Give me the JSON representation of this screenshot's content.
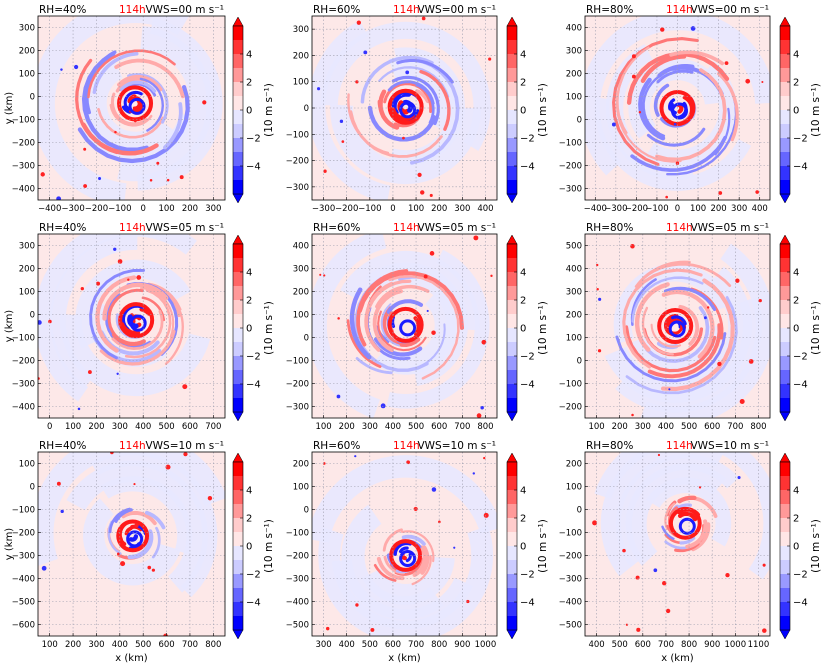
{
  "panels": [
    {
      "label": "RH=40%",
      "time": "114h",
      "shear": "VWS=00 m s⁻¹",
      "xticks": [
        "−400",
        "−300",
        "−200",
        "−100",
        "0",
        "100",
        "200",
        "300"
      ],
      "yticks": [
        "300",
        "200",
        "100",
        "0",
        "−100",
        "−200",
        "−300",
        "−400"
      ],
      "xlabel": "",
      "ylabel": "y (km)"
    },
    {
      "label": "RH=60%",
      "time": "114h",
      "shear": "VWS=00 m s⁻¹",
      "xticks": [
        "−300",
        "−200",
        "−100",
        "0",
        "100",
        "200",
        "300",
        "400"
      ],
      "yticks": [
        "300",
        "200",
        "100",
        "0",
        "−100",
        "−200",
        "−300"
      ],
      "xlabel": "",
      "ylabel": ""
    },
    {
      "label": "RH=80%",
      "time": "114h",
      "shear": "VWS=00 m s⁻¹",
      "xticks": [
        "−400",
        "−300",
        "−200",
        "−100",
        "0",
        "100",
        "200",
        "300",
        "400"
      ],
      "yticks": [
        "400",
        "300",
        "200",
        "100",
        "0",
        "−100",
        "−200",
        "−300"
      ],
      "xlabel": "",
      "ylabel": ""
    },
    {
      "label": "RH=40%",
      "time": "114h",
      "shear": "VWS=05 m s⁻¹",
      "xticks": [
        "0",
        "100",
        "200",
        "300",
        "400",
        "500",
        "600",
        "700"
      ],
      "yticks": [
        "300",
        "200",
        "100",
        "0",
        "−100",
        "−200",
        "−300",
        "−400"
      ],
      "xlabel": "",
      "ylabel": "y (km)"
    },
    {
      "label": "RH=60%",
      "time": "114h",
      "shear": "VWS=05 m s⁻¹",
      "xticks": [
        "100",
        "200",
        "300",
        "400",
        "500",
        "600",
        "700",
        "800"
      ],
      "yticks": [
        "400",
        "300",
        "200",
        "100",
        "0",
        "−100",
        "−200",
        "−300"
      ],
      "xlabel": "",
      "ylabel": ""
    },
    {
      "label": "RH=80%",
      "time": "114h",
      "shear": "VWS=05 m s⁻¹",
      "xticks": [
        "100",
        "200",
        "300",
        "400",
        "500",
        "600",
        "700",
        "800"
      ],
      "yticks": [
        "500",
        "400",
        "300",
        "200",
        "100",
        "0",
        "−100",
        "−200"
      ],
      "xlabel": "",
      "ylabel": ""
    },
    {
      "label": "RH=40%",
      "time": "114h",
      "shear": "VWS=10 m s⁻¹",
      "xticks": [
        "100",
        "200",
        "300",
        "400",
        "500",
        "600",
        "700",
        "800"
      ],
      "yticks": [
        "100",
        "0",
        "−100",
        "−200",
        "−300",
        "−400",
        "−500",
        "−600"
      ],
      "xlabel": "x (km)",
      "ylabel": "y (km)"
    },
    {
      "label": "RH=60%",
      "time": "114h",
      "shear": "VWS=10 m s⁻¹",
      "xticks": [
        "300",
        "400",
        "500",
        "600",
        "700",
        "800",
        "900",
        "1000"
      ],
      "yticks": [
        "200",
        "100",
        "0",
        "−100",
        "−200",
        "−300",
        "−400",
        "−500"
      ],
      "xlabel": "x (km)",
      "ylabel": ""
    },
    {
      "label": "RH=80%",
      "time": "114h",
      "shear": "VWS=10 m s⁻¹",
      "xticks": [
        "400",
        "500",
        "600",
        "700",
        "800",
        "900",
        "1000",
        "1100"
      ],
      "yticks": [
        "200",
        "100",
        "0",
        "−100",
        "−200",
        "−300",
        "−400",
        "−500"
      ],
      "xlabel": "x (km)",
      "ylabel": ""
    }
  ],
  "colorbar": {
    "label": "(10 m s⁻¹)",
    "ticks": [
      "4",
      "2",
      "0",
      "−2",
      "−4"
    ],
    "colors": [
      "#fe0000",
      "#ff3333",
      "#ff6666",
      "#ff9999",
      "#ffcccc",
      "#ffe6e6",
      "#e6e6ff",
      "#ccccff",
      "#9999ff",
      "#6666ff",
      "#3333ff",
      "#0000fe"
    ],
    "over": "#ff0000",
    "under": "#0000ff"
  },
  "style": {
    "background_pos": "#fde8e8",
    "background_neg": "#e8e8ff",
    "positive": "#ee1c1c",
    "negative": "#2b2bee",
    "grid": "#a0a0b0"
  },
  "chart_data": [
    {
      "type": "heatmap",
      "title": "RH=40%  114h  VWS=00 m s-1",
      "xlabel": "",
      "ylabel": "y (km)",
      "xlim": [
        -400,
        390
      ],
      "ylim": [
        -410,
        390
      ],
      "center": [
        10,
        10
      ],
      "field": "(10 m s-1)",
      "vmin": -5,
      "vmax": 5
    },
    {
      "type": "heatmap",
      "title": "RH=60%  114h  VWS=00 m s-1",
      "xlabel": "",
      "ylabel": "",
      "xlim": [
        -370,
        440
      ],
      "ylim": [
        -380,
        390
      ],
      "center": [
        40,
        10
      ],
      "field": "(10 m s-1)",
      "vmin": -5,
      "vmax": 5
    },
    {
      "type": "heatmap",
      "title": "RH=80%  114h  VWS=00 m s-1",
      "xlabel": "",
      "ylabel": "",
      "xlim": [
        -410,
        410
      ],
      "ylim": [
        -360,
        420
      ],
      "center": [
        0,
        30
      ],
      "field": "(10 m s-1)",
      "vmin": -5,
      "vmax": 5
    },
    {
      "type": "heatmap",
      "title": "RH=40%  114h  VWS=05 m s-1",
      "xlabel": "",
      "ylabel": "y (km)",
      "xlim": [
        -70,
        730
      ],
      "ylim": [
        -440,
        350
      ],
      "center": [
        350,
        -20
      ],
      "field": "(10 m s-1)",
      "vmin": -5,
      "vmax": 5
    },
    {
      "type": "heatmap",
      "title": "RH=60%  114h  VWS=05 m s-1",
      "xlabel": "",
      "ylabel": "",
      "xlim": [
        20,
        830
      ],
      "ylim": [
        -310,
        480
      ],
      "center": [
        430,
        90
      ],
      "field": "(10 m s-1)",
      "vmin": -5,
      "vmax": 5
    },
    {
      "type": "heatmap",
      "title": "RH=80%  114h  VWS=05 m s-1",
      "xlabel": "",
      "ylabel": "",
      "xlim": [
        80,
        880
      ],
      "ylim": [
        -230,
        570
      ],
      "center": [
        470,
        170
      ],
      "field": "(10 m s-1)",
      "vmin": -5,
      "vmax": 5
    },
    {
      "type": "heatmap",
      "title": "RH=40%  114h  VWS=10 m s-1",
      "xlabel": "x (km)",
      "ylabel": "y (km)",
      "xlim": [
        40,
        850
      ],
      "ylim": [
        -610,
        180
      ],
      "center": [
        450,
        -180
      ],
      "field": "(10 m s-1)",
      "vmin": -5,
      "vmax": 5
    },
    {
      "type": "heatmap",
      "title": "RH=60%  114h  VWS=10 m s-1",
      "xlabel": "x (km)",
      "ylabel": "",
      "xlim": [
        240,
        1050
      ],
      "ylim": [
        -510,
        290
      ],
      "center": [
        650,
        -160
      ],
      "field": "(10 m s-1)",
      "vmin": -5,
      "vmax": 5
    },
    {
      "type": "heatmap",
      "title": "RH=80%  114h  VWS=10 m s-1",
      "xlabel": "x (km)",
      "ylabel": "",
      "xlim": [
        340,
        1170
      ],
      "ylim": [
        -510,
        290
      ],
      "center": [
        790,
        -20
      ],
      "field": "(10 m s-1)",
      "vmin": -5,
      "vmax": 5
    }
  ]
}
